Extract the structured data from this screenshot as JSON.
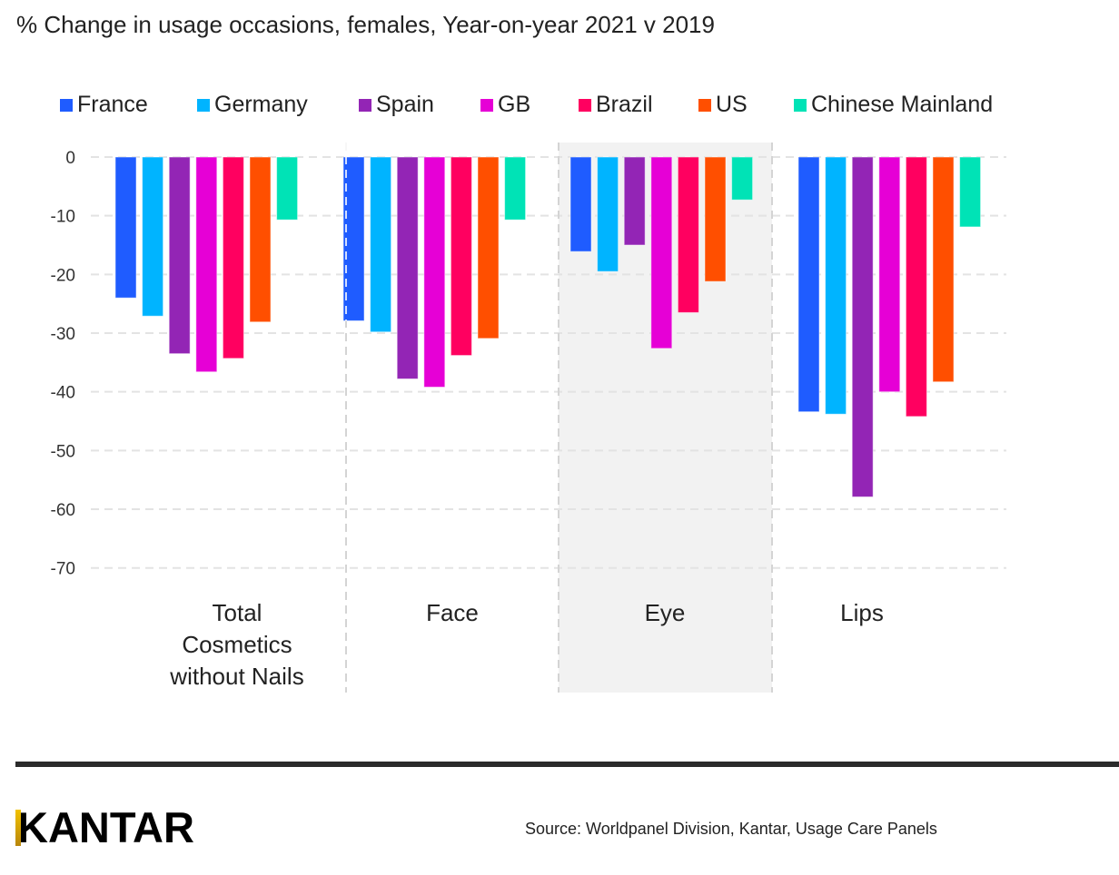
{
  "title": "% Change in usage occasions, females, Year-on-year 2021 v 2019",
  "source": "Source: Worldpanel Division, Kantar, Usage Care Panels",
  "logo": {
    "text": "KANTAR",
    "accent_color": "#f2c200"
  },
  "chart_data": {
    "type": "bar",
    "title": "% Change in usage occasions, females, Year-on-year 2021 v 2019",
    "xlabel": "",
    "ylabel": "",
    "ylim": [
      -70,
      0
    ],
    "yticks": [
      0,
      -10,
      -20,
      -30,
      -40,
      -50,
      -60,
      -70
    ],
    "grid": true,
    "legend_position": "top",
    "categories": [
      "Total Cosmetics without Nails",
      "Face",
      "Eye",
      "Lips"
    ],
    "category_label_lines": [
      [
        "Total",
        "Cosmetics",
        "without Nails"
      ],
      [
        "Face"
      ],
      [
        "Eye"
      ],
      [
        "Lips"
      ]
    ],
    "highlighted_category": "Eye",
    "series": [
      {
        "name": "France",
        "color": "#1f5cff",
        "values": [
          -24.0,
          -27.9,
          -16.1,
          -43.4
        ]
      },
      {
        "name": "Germany",
        "color": "#00b4ff",
        "values": [
          -27.1,
          -29.8,
          -19.5,
          -43.8
        ]
      },
      {
        "name": "Spain",
        "color": "#9325b5",
        "values": [
          -33.5,
          -37.8,
          -15.0,
          -57.9
        ]
      },
      {
        "name": "GB",
        "color": "#e600d6",
        "values": [
          -36.6,
          -39.2,
          -32.6,
          -40.0
        ]
      },
      {
        "name": "Brazil",
        "color": "#ff0060",
        "values": [
          -34.3,
          -33.8,
          -26.5,
          -44.2
        ]
      },
      {
        "name": "US",
        "color": "#ff4f00",
        "values": [
          -28.1,
          -30.9,
          -21.2,
          -38.3
        ]
      },
      {
        "name": "Chinese Mainland",
        "color": "#00e3b6",
        "values": [
          -10.7,
          -10.7,
          -7.3,
          -11.9
        ]
      }
    ]
  }
}
